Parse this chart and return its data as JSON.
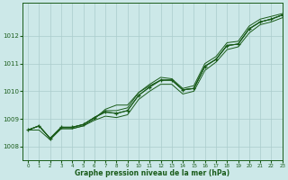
{
  "x": [
    0,
    1,
    2,
    3,
    4,
    5,
    6,
    7,
    8,
    9,
    10,
    11,
    12,
    13,
    14,
    15,
    16,
    17,
    18,
    19,
    20,
    21,
    22,
    23
  ],
  "line_main": [
    1008.6,
    1008.75,
    1008.3,
    1008.7,
    1008.7,
    1008.8,
    1009.05,
    1009.25,
    1009.2,
    1009.3,
    1009.85,
    1010.15,
    1010.4,
    1010.4,
    1010.05,
    1010.1,
    1010.9,
    1011.15,
    1011.65,
    1011.7,
    1012.25,
    1012.5,
    1012.6,
    1012.75
  ],
  "line_spread1": [
    1008.6,
    1008.75,
    1008.3,
    1008.7,
    1008.7,
    1008.8,
    1009.05,
    1009.25,
    1009.2,
    1009.3,
    1009.85,
    1010.15,
    1010.4,
    1010.4,
    1010.05,
    1010.1,
    1010.9,
    1011.15,
    1011.65,
    1011.7,
    1012.25,
    1012.5,
    1012.6,
    1012.75
  ],
  "line_spread2": [
    1008.6,
    1008.75,
    1008.3,
    1008.7,
    1008.7,
    1008.8,
    1009.05,
    1009.3,
    1009.3,
    1009.4,
    1009.95,
    1010.25,
    1010.5,
    1010.45,
    1010.1,
    1010.2,
    1011.0,
    1011.25,
    1011.75,
    1011.8,
    1012.35,
    1012.6,
    1012.7,
    1012.8
  ],
  "line_low": [
    1008.6,
    1008.6,
    1008.25,
    1008.65,
    1008.65,
    1008.75,
    1008.95,
    1009.1,
    1009.05,
    1009.15,
    1009.7,
    1010.0,
    1010.25,
    1010.25,
    1009.9,
    1010.0,
    1010.75,
    1011.05,
    1011.5,
    1011.6,
    1012.1,
    1012.4,
    1012.5,
    1012.65
  ],
  "line_diverge": [
    1008.6,
    1008.75,
    1008.3,
    1008.65,
    1008.65,
    1008.75,
    1009.0,
    1009.35,
    1009.5,
    1009.5,
    1009.95,
    1010.2,
    1010.4,
    1010.4,
    1010.05,
    1010.1,
    1010.9,
    1011.15,
    1011.65,
    1011.7,
    1012.25,
    1012.5,
    1012.6,
    1012.75
  ],
  "line_color": "#1a5c1a",
  "bg_color": "#cce8e8",
  "grid_color": "#aacccc",
  "xlabel": "Graphe pression niveau de la mer (hPa)",
  "ylim": [
    1007.5,
    1013.2
  ],
  "xlim": [
    -0.5,
    23
  ],
  "yticks": [
    1008,
    1009,
    1010,
    1011,
    1012
  ],
  "xticks": [
    0,
    1,
    2,
    3,
    4,
    5,
    6,
    7,
    8,
    9,
    10,
    11,
    12,
    13,
    14,
    15,
    16,
    17,
    18,
    19,
    20,
    21,
    22,
    23
  ]
}
